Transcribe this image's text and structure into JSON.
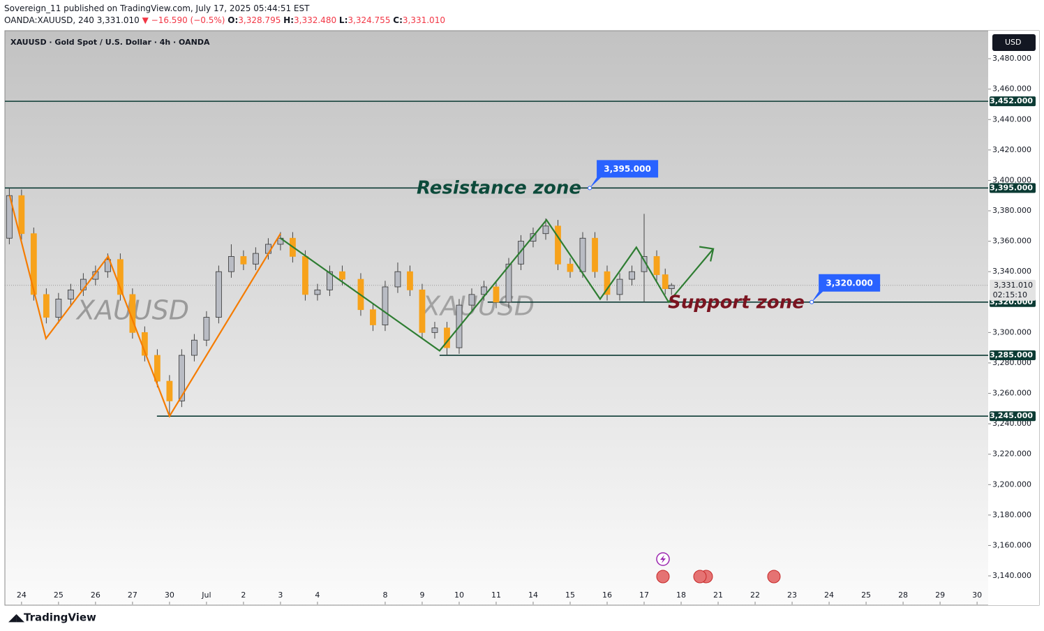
{
  "header": {
    "publisher": "Sovereign_11 published on TradingView.com, July 17, 2025 05:44:51 EST",
    "symbol": "OANDA:XAUUSD, 240",
    "price": "3,331.010",
    "change": "▼ −16.590 (−0.5%)",
    "o_label": "O:",
    "o": "3,328.795",
    "h_label": "H:",
    "h": "3,332.480",
    "l_label": "L:",
    "l": "3,324.755",
    "c_label": "C:",
    "c": "3,331.010"
  },
  "chart_data": {
    "type": "candlestick",
    "title": "XAUUSD · Gold Spot / U.S. Dollar · 4h · OANDA",
    "currency": "USD",
    "watermarks": [
      "XAUUSD",
      "XAUUSD"
    ],
    "up_color": "#b9bcc4",
    "down_color": "#f7a21b",
    "x": [
      -0.33,
      0,
      0.33,
      0.67,
      1,
      1.33,
      1.67,
      2,
      2.33,
      2.67,
      3,
      3.33,
      3.67,
      4,
      4.33,
      4.67,
      5,
      5.33,
      5.67,
      6,
      6.33,
      6.67,
      7,
      7.33,
      7.67,
      8,
      8.33,
      8.67,
      9.17,
      9.5,
      9.83,
      10.17,
      10.5,
      10.83,
      11.17,
      11.5,
      11.83,
      12.17,
      12.5,
      12.83,
      13.17,
      13.5,
      13.83,
      14.17,
      14.5,
      14.83,
      15.17,
      15.5,
      15.83,
      16.17,
      16.5,
      16.83,
      17.17,
      17.4,
      17.57
    ],
    "open": [
      3362,
      3390,
      3365,
      3325,
      3310,
      3322,
      3328,
      3335,
      3340,
      3348,
      3325,
      3300,
      3285,
      3268,
      3255,
      3285,
      3295,
      3310,
      3340,
      3350,
      3345,
      3352,
      3358,
      3362,
      3350,
      3325,
      3328,
      3340,
      3335,
      3315,
      3305,
      3330,
      3340,
      3328,
      3300,
      3303,
      3290,
      3318,
      3325,
      3330,
      3320,
      3345,
      3360,
      3365,
      3370,
      3345,
      3340,
      3362,
      3340,
      3325,
      3335,
      3340,
      3350,
      3338,
      3328.795
    ],
    "high": [
      3395,
      3394,
      3369,
      3329,
      3326,
      3332,
      3339,
      3344,
      3352,
      3352,
      3329,
      3304,
      3289,
      3272,
      3289,
      3299,
      3314,
      3344,
      3358,
      3354,
      3356,
      3362,
      3366,
      3366,
      3354,
      3332,
      3344,
      3344,
      3339,
      3319,
      3334,
      3346,
      3344,
      3332,
      3307,
      3307,
      3322,
      3329,
      3334,
      3334,
      3349,
      3364,
      3369,
      3375,
      3374,
      3349,
      3366,
      3366,
      3344,
      3339,
      3344,
      3378,
      3354,
      3342,
      3332.48
    ],
    "low": [
      3358,
      3361,
      3321,
      3306,
      3306,
      3318,
      3324,
      3331,
      3336,
      3321,
      3296,
      3281,
      3264,
      3245,
      3251,
      3281,
      3291,
      3306,
      3336,
      3341,
      3341,
      3348,
      3354,
      3346,
      3321,
      3321,
      3324,
      3331,
      3311,
      3301,
      3301,
      3326,
      3324,
      3296,
      3296,
      3285,
      3286,
      3314,
      3321,
      3316,
      3316,
      3341,
      3356,
      3361,
      3341,
      3336,
      3336,
      3336,
      3321,
      3321,
      3331,
      3320,
      3334,
      3325,
      3324.755
    ],
    "close": [
      3390,
      3365,
      3325,
      3310,
      3322,
      3328,
      3335,
      3340,
      3348,
      3325,
      3300,
      3285,
      3268,
      3255,
      3285,
      3295,
      3310,
      3340,
      3350,
      3345,
      3352,
      3358,
      3362,
      3350,
      3325,
      3328,
      3340,
      3335,
      3315,
      3305,
      3330,
      3340,
      3328,
      3300,
      3303,
      3290,
      3318,
      3325,
      3330,
      3320,
      3345,
      3360,
      3365,
      3370,
      3345,
      3340,
      3362,
      3340,
      3325,
      3335,
      3340,
      3350,
      3338,
      3328.795,
      3331.01
    ],
    "xlim": [
      -0.45,
      26.13
    ],
    "xticks": [
      {
        "value": 0,
        "label": "24"
      },
      {
        "value": 1,
        "label": "25"
      },
      {
        "value": 2,
        "label": "26"
      },
      {
        "value": 3,
        "label": "27"
      },
      {
        "value": 4,
        "label": "30"
      },
      {
        "value": 5,
        "label": "Jul"
      },
      {
        "value": 6,
        "label": "2"
      },
      {
        "value": 7,
        "label": "3"
      },
      {
        "value": 8,
        "label": "4"
      },
      {
        "value": 9.83,
        "label": "8"
      },
      {
        "value": 10.83,
        "label": "9"
      },
      {
        "value": 11.83,
        "label": "10"
      },
      {
        "value": 12.83,
        "label": "11"
      },
      {
        "value": 13.83,
        "label": "14"
      },
      {
        "value": 14.83,
        "label": "15"
      },
      {
        "value": 15.83,
        "label": "16"
      },
      {
        "value": 16.83,
        "label": "17"
      },
      {
        "value": 17.83,
        "label": "18"
      },
      {
        "value": 18.83,
        "label": "21"
      },
      {
        "value": 19.83,
        "label": "22"
      },
      {
        "value": 20.83,
        "label": "23"
      },
      {
        "value": 21.83,
        "label": "24"
      },
      {
        "value": 22.83,
        "label": "25"
      },
      {
        "value": 23.83,
        "label": "28"
      },
      {
        "value": 24.83,
        "label": "29"
      },
      {
        "value": 25.83,
        "label": "30"
      }
    ],
    "ylim": [
      3121.2,
      3498.4
    ],
    "yticks": [
      {
        "value": 3480,
        "label": "3,480.000"
      },
      {
        "value": 3460,
        "label": "3,460.000"
      },
      {
        "value": 3440,
        "label": "3,440.000"
      },
      {
        "value": 3420,
        "label": "3,420.000"
      },
      {
        "value": 3400,
        "label": "3,400.000"
      },
      {
        "value": 3380,
        "label": "3,380.000"
      },
      {
        "value": 3360,
        "label": "3,360.000"
      },
      {
        "value": 3340,
        "label": "3,340.000"
      },
      {
        "value": 3300,
        "label": "3,300.000"
      },
      {
        "value": 3280,
        "label": "3,280.000"
      },
      {
        "value": 3260,
        "label": "3,260.000"
      },
      {
        "value": 3240,
        "label": "3,240.000"
      },
      {
        "value": 3220,
        "label": "3,220.000"
      },
      {
        "value": 3200,
        "label": "3,200.000"
      },
      {
        "value": 3180,
        "label": "3,180.000"
      },
      {
        "value": 3160,
        "label": "3,160.000"
      },
      {
        "value": 3140,
        "label": "3,140.000"
      }
    ],
    "level_color": "#0c3b34",
    "levels": [
      {
        "value": 3452,
        "label": "3,452.000"
      },
      {
        "value": 3395,
        "label": "3,395.000"
      },
      {
        "value": 3320,
        "label": "3,320.000",
        "from": 12.6
      },
      {
        "value": 3285,
        "label": "3,285.000",
        "from": 11.3
      },
      {
        "value": 3245,
        "label": "3,245.000",
        "from": 3.66
      }
    ],
    "callout_color": "#2962ff",
    "callouts": [
      {
        "x": 15.36,
        "value": 3395,
        "label": "3,395.000"
      },
      {
        "x": 21.36,
        "value": 3320,
        "label": "3,320.000"
      }
    ],
    "zones": [
      {
        "text": "Resistance zone",
        "color": "#0c4a3a"
      },
      {
        "text": "Support zone",
        "color": "#7a1420"
      }
    ],
    "lines": [
      {
        "color": "#f57c00",
        "x": [
          -0.32,
          0.66,
          2.34,
          4.0,
          7.0
        ],
        "values": [
          3390,
          3296,
          3350,
          3245,
          3365
        ]
      },
      {
        "color": "#2e7d32",
        "x": [
          7.0,
          11.3,
          14.19,
          15.64,
          16.62,
          17.49,
          18.7
        ],
        "values": [
          3362,
          3288,
          3374,
          3322,
          3356,
          3320,
          3355
        ]
      }
    ],
    "last_price": {
      "value": 3331.01,
      "label": "3,331.010",
      "countdown": "02:15:10"
    }
  },
  "footer": {
    "brand": "TradingView"
  }
}
